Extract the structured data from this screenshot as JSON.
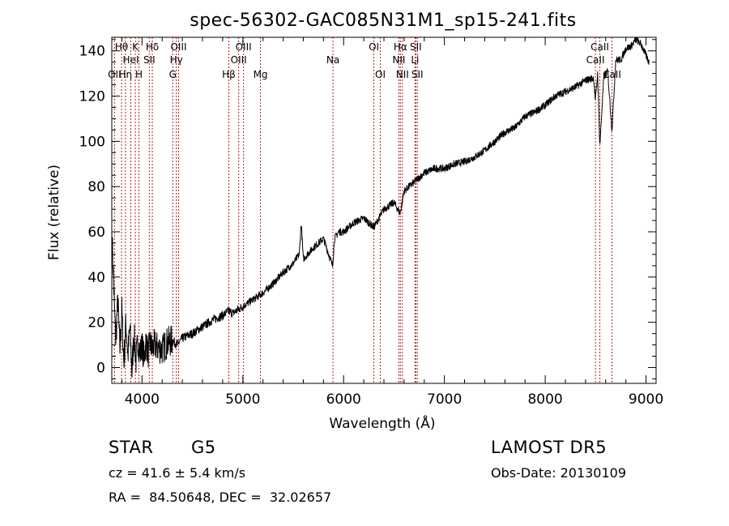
{
  "chart_data": {
    "type": "line",
    "title": "spec-56302-GAC085N31M1_sp15-241.fits",
    "xlabel": "Wavelength (Å)",
    "ylabel": "Flux (relative)",
    "xlim": [
      3700,
      9100
    ],
    "ylim": [
      -7,
      146
    ],
    "x_ticks": [
      4000,
      5000,
      6000,
      7000,
      8000,
      9000
    ],
    "y_ticks": [
      0,
      20,
      40,
      60,
      80,
      100,
      120,
      140
    ],
    "grid": false,
    "colors": {
      "spectrum": "#000000",
      "line_markers": "#b22222",
      "text": "#000000"
    },
    "series": [
      {
        "x": [
          3705,
          3725,
          3740,
          3760,
          3780,
          3800,
          3820,
          3840,
          3860,
          3880,
          3900,
          3920,
          3940,
          3960,
          3980,
          4000,
          4020,
          4040,
          4060,
          4080,
          4100,
          4120,
          4150,
          4200,
          4250,
          4300,
          4350,
          4400,
          4450,
          4500,
          4600,
          4700,
          4800,
          4860,
          4900,
          5000,
          5100,
          5200,
          5300,
          5400,
          5500,
          5560,
          5580,
          5600,
          5700,
          5800,
          5890,
          5910,
          5950,
          6000,
          6100,
          6200,
          6300,
          6350,
          6400,
          6500,
          6560,
          6600,
          6700,
          6800,
          6900,
          7000,
          7100,
          7200,
          7300,
          7400,
          7500,
          7600,
          7700,
          7800,
          7900,
          8000,
          8100,
          8200,
          8300,
          8400,
          8480,
          8498,
          8520,
          8542,
          8580,
          8620,
          8662,
          8700,
          8750,
          8800,
          8850,
          8900,
          8950,
          9000,
          9030
        ],
        "y": [
          55,
          28,
          12,
          30,
          8,
          25,
          2,
          20,
          5,
          18,
          -2,
          15,
          3,
          12,
          6,
          10,
          4,
          12,
          6,
          11,
          8,
          10,
          9,
          8,
          11,
          12,
          10,
          13,
          14,
          15,
          18,
          21,
          23,
          25,
          24,
          27,
          30,
          33,
          37,
          42,
          46,
          50,
          64,
          48,
          53,
          57,
          45,
          57,
          60,
          60,
          64,
          66,
          62,
          66,
          70,
          73,
          68,
          78,
          82,
          86,
          88,
          88,
          90,
          91,
          93,
          96,
          100,
          104,
          106,
          111,
          113,
          116,
          120,
          122,
          124,
          127,
          128,
          118,
          130,
          98,
          128,
          131,
          105,
          136,
          136,
          141,
          142,
          145,
          143,
          138,
          135
        ]
      }
    ],
    "spectral_lines": [
      {
        "label": "OII",
        "x": 3727,
        "row": 3
      },
      {
        "label": "Hθ",
        "x": 3797,
        "row": 1
      },
      {
        "label": "Hη",
        "x": 3835,
        "row": 3
      },
      {
        "label": "HeI",
        "x": 3889,
        "row": 2
      },
      {
        "label": "K",
        "x": 3934,
        "row": 1
      },
      {
        "label": "H",
        "x": 3969,
        "row": 3
      },
      {
        "label": "SII",
        "x": 4072,
        "row": 2
      },
      {
        "label": "Hδ",
        "x": 4102,
        "row": 1
      },
      {
        "label": "G",
        "x": 4305,
        "row": 3
      },
      {
        "label": "Hγ",
        "x": 4340,
        "row": 2
      },
      {
        "label": "OIII",
        "x": 4363,
        "row": 1
      },
      {
        "label": "Hβ",
        "x": 4861,
        "row": 3
      },
      {
        "label": "OIII",
        "x": 4959,
        "row": 2
      },
      {
        "label": "OIII",
        "x": 5007,
        "row": 1
      },
      {
        "label": "Mg",
        "x": 5175,
        "row": 3
      },
      {
        "label": "Na",
        "x": 5894,
        "row": 2
      },
      {
        "label": "OI",
        "x": 6300,
        "row": 1
      },
      {
        "label": "OI",
        "x": 6364,
        "row": 3
      },
      {
        "label": "NII",
        "x": 6548,
        "row": 2
      },
      {
        "label": "Hα",
        "x": 6563,
        "row": 1
      },
      {
        "label": "NII",
        "x": 6583,
        "row": 3
      },
      {
        "label": "Li",
        "x": 6708,
        "row": 2
      },
      {
        "label": "SII",
        "x": 6716,
        "row": 1
      },
      {
        "label": "SII",
        "x": 6731,
        "row": 3
      },
      {
        "label": "CaII",
        "x": 8498,
        "row": 2
      },
      {
        "label": "CaII",
        "x": 8542,
        "row": 1
      },
      {
        "label": "CaII",
        "x": 8662,
        "row": 3
      }
    ]
  },
  "info": {
    "object_class": "STAR",
    "subclass": "G5",
    "survey": "LAMOST DR5",
    "redshift_line": "cz = 41.6 ± 5.4 km/s",
    "obs_date_line": "Obs-Date: 20130109",
    "coords_line": "RA =  84.50648, DEC =  32.02657"
  }
}
